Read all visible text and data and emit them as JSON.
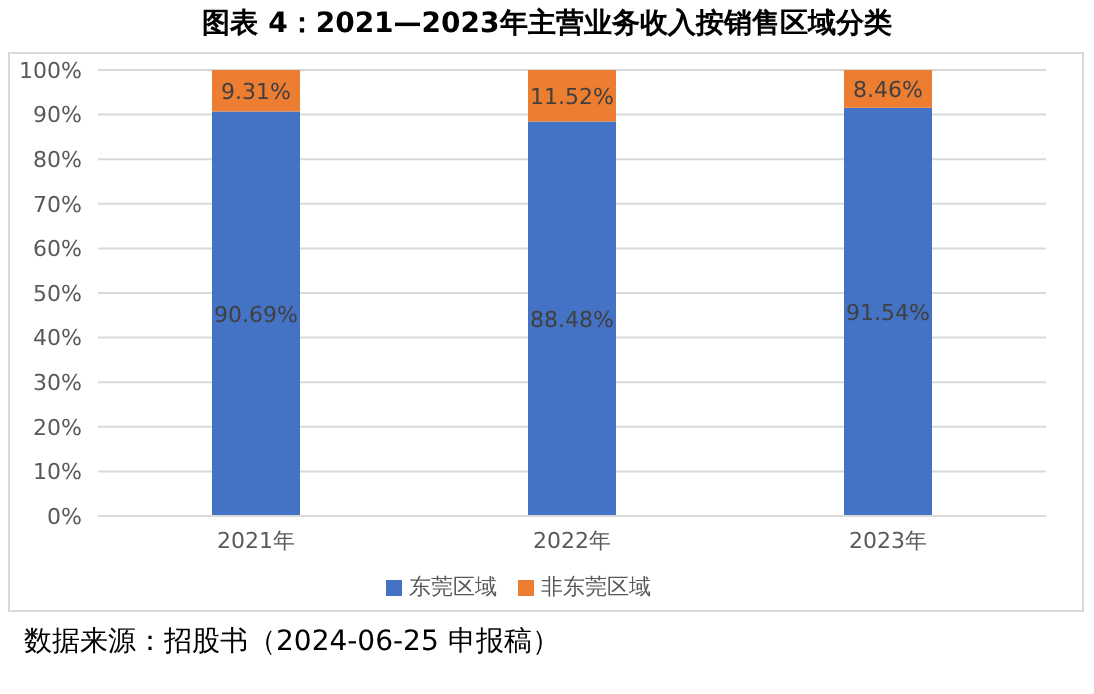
{
  "chart_data": {
    "type": "bar",
    "title": "图表 4：2021—2023年主营业务收入按销售区域分类",
    "categories": [
      "2021年",
      "2022年",
      "2023年"
    ],
    "series": [
      {
        "name": "东莞区域",
        "color": "#4472c4",
        "values": [
          90.69,
          88.48,
          91.54
        ],
        "value_labels": [
          "90.69%",
          "88.48%",
          "91.54%"
        ]
      },
      {
        "name": "非东莞区域",
        "color": "#ed7d31",
        "values": [
          9.31,
          11.52,
          8.46
        ],
        "value_labels": [
          "9.31%",
          "11.52%",
          "8.46%"
        ]
      }
    ],
    "stacked": true,
    "ylim": [
      0,
      100
    ],
    "yticks": [
      {
        "value": 0,
        "label": "0%"
      },
      {
        "value": 10,
        "label": "10%"
      },
      {
        "value": 20,
        "label": "20%"
      },
      {
        "value": 30,
        "label": "30%"
      },
      {
        "value": 40,
        "label": "40%"
      },
      {
        "value": 50,
        "label": "50%"
      },
      {
        "value": 60,
        "label": "60%"
      },
      {
        "value": 70,
        "label": "70%"
      },
      {
        "value": 80,
        "label": "80%"
      },
      {
        "value": 90,
        "label": "90%"
      },
      {
        "value": 100,
        "label": "100%"
      }
    ],
    "grid": "y",
    "legend": "bottom",
    "annotations": [
      "数据来源：招股书（2024-06-25 申报稿）"
    ]
  }
}
